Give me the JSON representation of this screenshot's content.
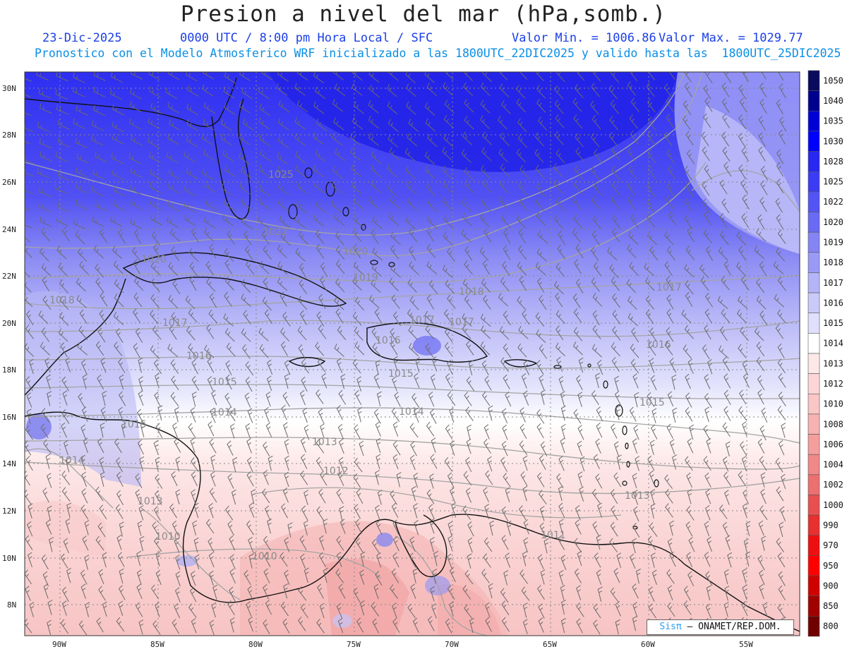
{
  "title": "Presion a nivel del mar (hPa,somb.)",
  "header": {
    "date": "23-Dic-2025",
    "time": "0000 UTC / 8:00 pm Hora Local / SFC",
    "min": "Valor Min. = 1006.86",
    "max": "Valor Max. = 1029.77",
    "forecast": "Pronostico con el Modelo Atmosferico WRF inicializado a las 1800UTC_22DIC2025 y valido hasta las  1800UTC_25DIC2025"
  },
  "axes": {
    "lat_labels": [
      "30N",
      "28N",
      "26N",
      "24N",
      "22N",
      "20N",
      "18N",
      "16N",
      "14N",
      "12N",
      "10N",
      "8N"
    ],
    "lon_labels": [
      "90W",
      "85W",
      "80W",
      "75W",
      "70W",
      "65W",
      "60W",
      "55W"
    ]
  },
  "contour_labels": [
    "1025",
    "1022",
    "1020",
    "1020",
    "1019",
    "1018",
    "1018",
    "1017",
    "1017",
    "1017",
    "1017",
    "1016",
    "1016",
    "1016",
    "1015",
    "1015",
    "1015",
    "1015",
    "1014",
    "1014",
    "1014",
    "1013",
    "1013",
    "1013",
    "1012",
    "1011",
    "1010",
    "1010"
  ],
  "colorbar": {
    "levels": [
      "1050",
      "1040",
      "1035",
      "1030",
      "1028",
      "1025",
      "1022",
      "1020",
      "1019",
      "1018",
      "1017",
      "1016",
      "1015",
      "1014",
      "1013",
      "1012",
      "1010",
      "1008",
      "1006",
      "1004",
      "1002",
      "1000",
      "990",
      "970",
      "950",
      "900",
      "850",
      "800"
    ],
    "colors": [
      "#0a0a5e",
      "#00008f",
      "#0000d6",
      "#0000ff",
      "#2828f0",
      "#3c3cf4",
      "#5454f4",
      "#6a6af4",
      "#8484f4",
      "#9a9af6",
      "#b4b4f8",
      "#cacafa",
      "#e0e0fc",
      "#ffffff",
      "#fde8e8",
      "#fcd6d6",
      "#fac6c6",
      "#f7b2b2",
      "#f49e9e",
      "#f08888",
      "#ec7070",
      "#e85050",
      "#e83030",
      "#ee1010",
      "#ff0000",
      "#d00000",
      "#a00000",
      "#700000"
    ]
  },
  "credit": {
    "brand": "Sisπ",
    "text": "– ONAMET/REP.DOM."
  }
}
